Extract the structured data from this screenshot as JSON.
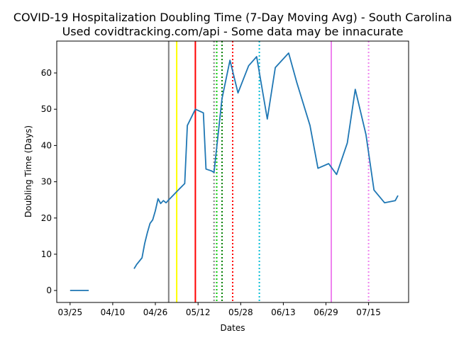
{
  "chart_data": {
    "type": "line",
    "title": "COVID-19 Hospitalization Doubling Time (7-Day Moving Avg) - South Carolina",
    "subtitle": "Used covidtracking.com/api - Some data may be innacurate",
    "xlabel": "Dates",
    "ylabel": "Doubling Time (Days)",
    "x_ticks": [
      "03/25",
      "04/10",
      "04/26",
      "05/12",
      "05/28",
      "06/13",
      "06/29",
      "07/15"
    ],
    "y_ticks": [
      0,
      10,
      20,
      30,
      40,
      50,
      60
    ],
    "xlim": [
      "03/20",
      "07/30"
    ],
    "ylim": [
      -3.3,
      68.8
    ],
    "grid": false,
    "series": [
      {
        "color": "#1f77b4",
        "segments": [
          [
            [
              "03/25",
              0
            ],
            [
              "03/26",
              0
            ],
            [
              "03/27",
              0
            ],
            [
              "03/28",
              0
            ],
            [
              "03/29",
              0
            ],
            [
              "03/30",
              0
            ],
            [
              "03/31",
              0
            ],
            [
              "04/01",
              0
            ]
          ],
          [
            [
              "04/18",
              6
            ],
            [
              "04/19",
              7.2
            ],
            [
              "04/21",
              9
            ],
            [
              "04/22",
              13
            ],
            [
              "04/23",
              16
            ],
            [
              "04/24",
              18.5
            ],
            [
              "04/25",
              19.5
            ],
            [
              "04/26",
              22
            ],
            [
              "04/27",
              25.3
            ],
            [
              "04/28",
              24
            ],
            [
              "04/29",
              24.8
            ],
            [
              "04/30",
              24.2
            ],
            [
              "05/01",
              25
            ],
            [
              "05/05",
              28
            ],
            [
              "05/07",
              29.5
            ],
            [
              "05/08",
              45.5
            ],
            [
              "05/11",
              50
            ],
            [
              "05/14",
              49
            ],
            [
              "05/15",
              33.5
            ],
            [
              "05/17",
              33
            ],
            [
              "05/18",
              32.6
            ],
            [
              "05/21",
              53
            ],
            [
              "05/24",
              63.5
            ],
            [
              "05/27",
              54.5
            ],
            [
              "05/31",
              62
            ],
            [
              "06/03",
              64.5
            ],
            [
              "06/07",
              47.3
            ],
            [
              "06/10",
              61.5
            ],
            [
              "06/15",
              65.5
            ],
            [
              "06/18",
              57.5
            ],
            [
              "06/23",
              45.5
            ],
            [
              "06/26",
              33.7
            ],
            [
              "06/30",
              35
            ],
            [
              "07/03",
              32
            ],
            [
              "07/07",
              40.7
            ],
            [
              "07/10",
              55.5
            ],
            [
              "07/14",
              43
            ],
            [
              "07/17",
              27.7
            ],
            [
              "07/21",
              24.2
            ],
            [
              "07/25",
              24.8
            ],
            [
              "07/26",
              26.2
            ]
          ]
        ]
      }
    ],
    "vlines": [
      {
        "date": "05/01",
        "color": "#808080",
        "style": "solid"
      },
      {
        "date": "05/04",
        "color": "#ffff00",
        "style": "solid"
      },
      {
        "date": "05/11",
        "color": "#ff0000",
        "style": "solid"
      },
      {
        "date": "05/18",
        "color": "#808080",
        "style": "dotted"
      },
      {
        "date": "05/19",
        "color": "#00cc00",
        "style": "dotted"
      },
      {
        "date": "05/21",
        "color": "#008000",
        "style": "dotted"
      },
      {
        "date": "05/25",
        "color": "#ff0000",
        "style": "dotted"
      },
      {
        "date": "06/04",
        "color": "#00bcd4",
        "style": "dotted"
      },
      {
        "date": "07/01",
        "color": "#ee82ee",
        "style": "solid"
      },
      {
        "date": "07/15",
        "color": "#ee82ee",
        "style": "dotted"
      }
    ]
  }
}
